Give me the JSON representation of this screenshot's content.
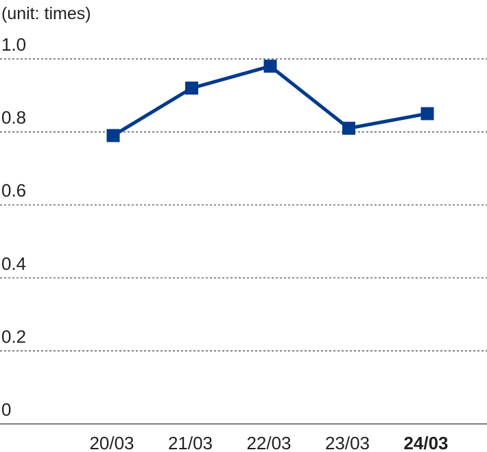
{
  "chart_data": {
    "type": "line",
    "unit_label": "(unit: times)",
    "categories": [
      "20/03",
      "21/03",
      "22/03",
      "23/03",
      "24/03"
    ],
    "highlight_category": "24/03",
    "series": [
      {
        "values": [
          0.79,
          0.92,
          0.98,
          0.81,
          0.85
        ],
        "color": "#003a8c"
      }
    ],
    "yticks": [
      "0",
      "0.2",
      "0.4",
      "0.6",
      "0.8",
      "1.0"
    ],
    "ylim": [
      0,
      1.0
    ],
    "grid": true,
    "marker": "square"
  }
}
